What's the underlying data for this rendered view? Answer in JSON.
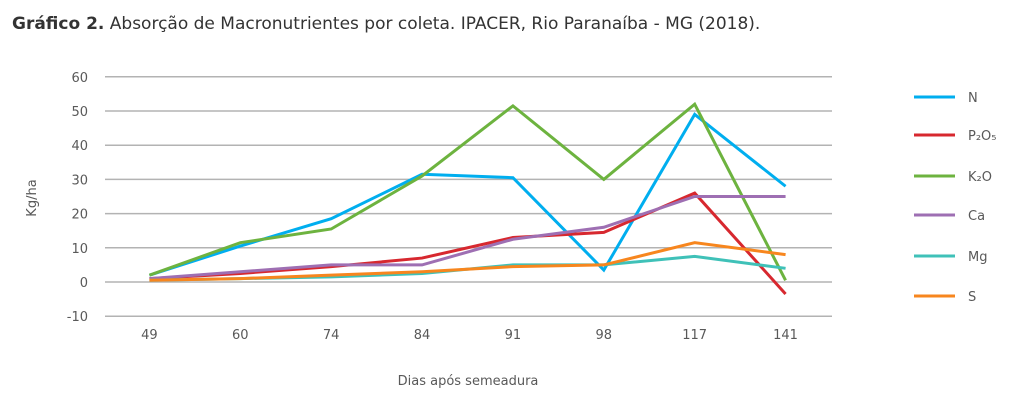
{
  "title_bold": "Gráfico 2.",
  "title_rest": " Absorção de Macronutrientes por coleta. IPACER, Rio Paranaíba - MG (2018).",
  "chart_data": {
    "type": "line",
    "xlabel": "Dias após semeadura",
    "ylabel": "Kg/ha",
    "ylim": [
      -10,
      60
    ],
    "yticks": [
      -10,
      0,
      10,
      20,
      30,
      40,
      50,
      60
    ],
    "categories": [
      "49",
      "60",
      "74",
      "84",
      "91",
      "98",
      "117",
      "141"
    ],
    "grid": true,
    "legend_position": "right",
    "series": [
      {
        "name": "N",
        "color": "#00aeef",
        "values": [
          2,
          10.5,
          18.5,
          31.5,
          30.5,
          3.5,
          49,
          28
        ]
      },
      {
        "name": "P₂O₅",
        "color": "#d7282f",
        "values": [
          1,
          2.5,
          4.5,
          7,
          13,
          14.5,
          26,
          -3.5
        ]
      },
      {
        "name": "K₂O",
        "color": "#6db33f",
        "values": [
          2,
          11.5,
          15.5,
          31,
          51.5,
          30,
          52,
          0.5
        ]
      },
      {
        "name": "Ca",
        "color": "#9e6fb3",
        "values": [
          1,
          3,
          5,
          5,
          12.5,
          16,
          25,
          25
        ]
      },
      {
        "name": "Mg",
        "color": "#3fc1b8",
        "values": [
          0.5,
          1,
          1.5,
          2.5,
          5,
          5,
          7.5,
          4
        ]
      },
      {
        "name": "S",
        "color": "#f7861e",
        "values": [
          0.5,
          1,
          2,
          3,
          4.5,
          5,
          11.5,
          8
        ]
      }
    ]
  }
}
